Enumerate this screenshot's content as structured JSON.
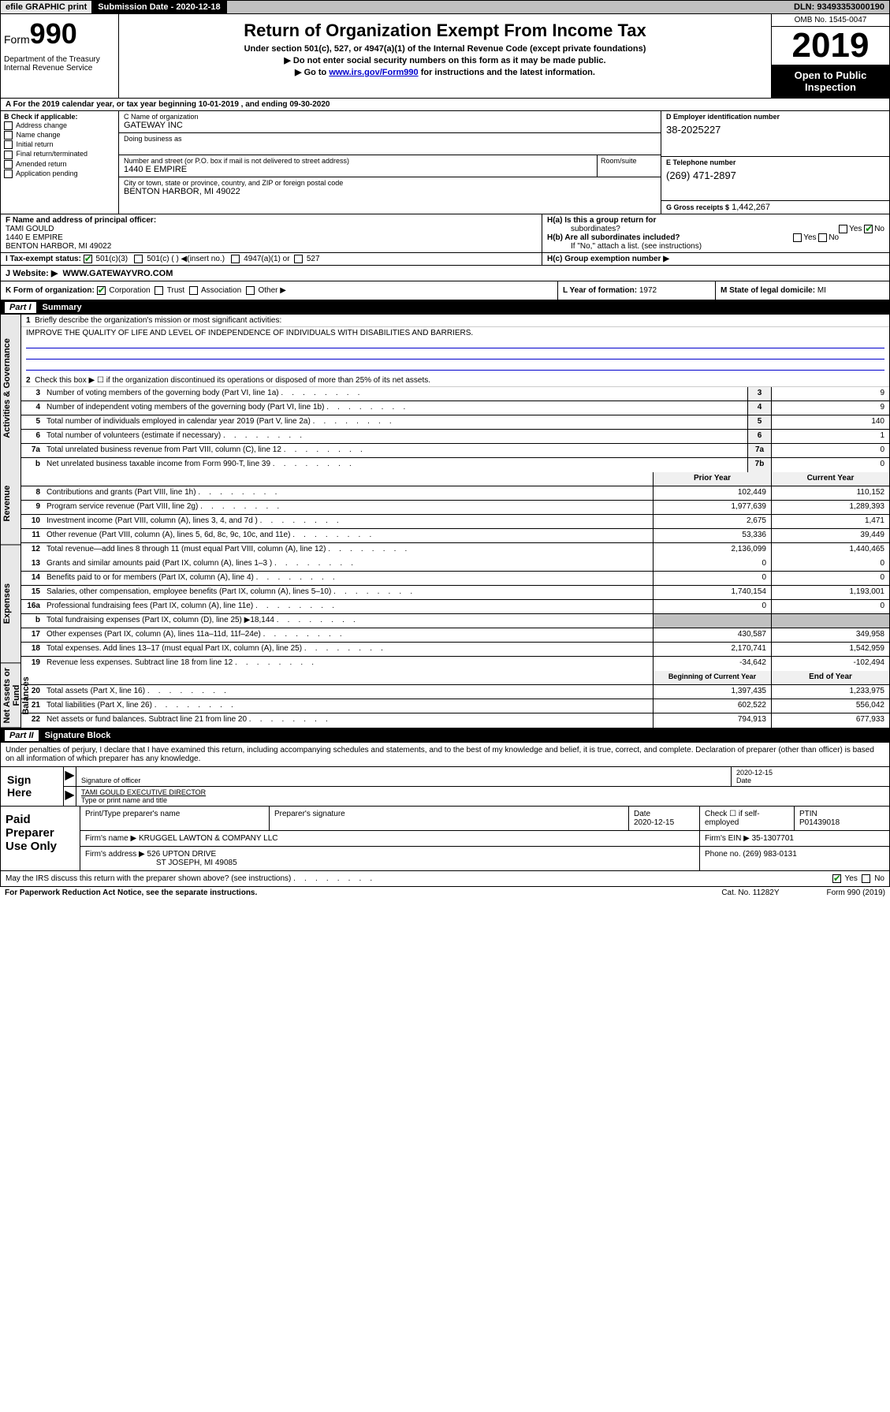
{
  "top": {
    "efile": "efile GRAPHIC print",
    "sub_label": "Submission Date - 2020-12-18",
    "dln": "DLN: 93493353000190"
  },
  "header": {
    "form": "Form",
    "form_num": "990",
    "dept": "Department of the Treasury\nInternal Revenue Service",
    "title": "Return of Organization Exempt From Income Tax",
    "sub1": "Under section 501(c), 527, or 4947(a)(1) of the Internal Revenue Code (except private foundations)",
    "sub2": "▶ Do not enter social security numbers on this form as it may be made public.",
    "sub3_pre": "▶ Go to ",
    "sub3_link": "www.irs.gov/Form990",
    "sub3_post": " for instructions and the latest information.",
    "omb": "OMB No. 1545-0047",
    "year": "2019",
    "open": "Open to Public Inspection"
  },
  "taxyear": "A For the 2019 calendar year, or tax year beginning 10-01-2019   , and ending 09-30-2020",
  "colB": {
    "label": "B Check if applicable:",
    "opts": [
      "Address change",
      "Name change",
      "Initial return",
      "Final return/terminated",
      "Amended return",
      "Application pending"
    ]
  },
  "colC": {
    "name_lbl": "C Name of organization",
    "name": "GATEWAY INC",
    "dba_lbl": "Doing business as",
    "addr_lbl": "Number and street (or P.O. box if mail is not delivered to street address)",
    "addr": "1440 E EMPIRE",
    "room_lbl": "Room/suite",
    "city_lbl": "City or town, state or province, country, and ZIP or foreign postal code",
    "city": "BENTON HARBOR, MI  49022"
  },
  "colD": {
    "ein_lbl": "D Employer identification number",
    "ein": "38-2025227",
    "tel_lbl": "E Telephone number",
    "tel": "(269) 471-2897",
    "gross_lbl": "G Gross receipts $",
    "gross": "1,442,267"
  },
  "F": {
    "lbl": "F Name and address of principal officer:",
    "name": "TAMI GOULD",
    "addr1": "1440 E EMPIRE",
    "addr2": "BENTON HARBOR, MI  49022"
  },
  "H": {
    "a": "H(a)  Is this a group return for",
    "a2": "subordinates?",
    "b": "H(b)  Are all subordinates included?",
    "note": "If \"No,\" attach a list. (see instructions)",
    "c": "H(c)  Group exemption number ▶"
  },
  "I": {
    "lbl": "I  Tax-exempt status:",
    "o1": "501(c)(3)",
    "o2": "501(c) (   ) ◀(insert no.)",
    "o3": "4947(a)(1) or",
    "o4": "527"
  },
  "J": {
    "lbl": "J  Website: ▶",
    "val": "WWW.GATEWAYVRO.COM"
  },
  "K": {
    "lbl": "K Form of organization:",
    "corp": "Corporation",
    "trust": "Trust",
    "assoc": "Association",
    "other": "Other ▶"
  },
  "L": {
    "lbl": "L Year of formation:",
    "val": "1972"
  },
  "M": {
    "lbl": "M State of legal domicile:",
    "val": "MI"
  },
  "partI": {
    "title": "Summary",
    "l1": "Briefly describe the organization's mission or most significant activities:",
    "mission": "IMPROVE THE QUALITY OF LIFE AND LEVEL OF INDEPENDENCE OF INDIVIDUALS WITH DISABILITIES AND BARRIERS.",
    "l2": "Check this box ▶ ☐ if the organization discontinued its operations or disposed of more than 25% of its net assets.",
    "lines_small": [
      {
        "n": "3",
        "t": "Number of voting members of the governing body (Part VI, line 1a)",
        "b": "3",
        "v": "9"
      },
      {
        "n": "4",
        "t": "Number of independent voting members of the governing body (Part VI, line 1b)",
        "b": "4",
        "v": "9"
      },
      {
        "n": "5",
        "t": "Total number of individuals employed in calendar year 2019 (Part V, line 2a)",
        "b": "5",
        "v": "140"
      },
      {
        "n": "6",
        "t": "Total number of volunteers (estimate if necessary)",
        "b": "6",
        "v": "1"
      },
      {
        "n": "7a",
        "t": "Total unrelated business revenue from Part VIII, column (C), line 12",
        "b": "7a",
        "v": "0"
      },
      {
        "n": "b",
        "t": "Net unrelated business taxable income from Form 990-T, line 39",
        "b": "7b",
        "v": "0"
      }
    ],
    "col_hdr_prior": "Prior Year",
    "col_hdr_curr": "Current Year",
    "revenue": [
      {
        "n": "8",
        "t": "Contributions and grants (Part VIII, line 1h)",
        "p": "102,449",
        "c": "110,152"
      },
      {
        "n": "9",
        "t": "Program service revenue (Part VIII, line 2g)",
        "p": "1,977,639",
        "c": "1,289,393"
      },
      {
        "n": "10",
        "t": "Investment income (Part VIII, column (A), lines 3, 4, and 7d )",
        "p": "2,675",
        "c": "1,471"
      },
      {
        "n": "11",
        "t": "Other revenue (Part VIII, column (A), lines 5, 6d, 8c, 9c, 10c, and 11e)",
        "p": "53,336",
        "c": "39,449"
      },
      {
        "n": "12",
        "t": "Total revenue—add lines 8 through 11 (must equal Part VIII, column (A), line 12)",
        "p": "2,136,099",
        "c": "1,440,465"
      }
    ],
    "expenses": [
      {
        "n": "13",
        "t": "Grants and similar amounts paid (Part IX, column (A), lines 1–3 )",
        "p": "0",
        "c": "0"
      },
      {
        "n": "14",
        "t": "Benefits paid to or for members (Part IX, column (A), line 4)",
        "p": "0",
        "c": "0"
      },
      {
        "n": "15",
        "t": "Salaries, other compensation, employee benefits (Part IX, column (A), lines 5–10)",
        "p": "1,740,154",
        "c": "1,193,001"
      },
      {
        "n": "16a",
        "t": "Professional fundraising fees (Part IX, column (A), line 11e)",
        "p": "0",
        "c": "0"
      },
      {
        "n": "b",
        "t": "Total fundraising expenses (Part IX, column (D), line 25) ▶18,144",
        "p": "",
        "c": "",
        "shaded": true
      },
      {
        "n": "17",
        "t": "Other expenses (Part IX, column (A), lines 11a–11d, 11f–24e)",
        "p": "430,587",
        "c": "349,958"
      },
      {
        "n": "18",
        "t": "Total expenses. Add lines 13–17 (must equal Part IX, column (A), line 25)",
        "p": "2,170,741",
        "c": "1,542,959"
      },
      {
        "n": "19",
        "t": "Revenue less expenses. Subtract line 18 from line 12",
        "p": "-34,642",
        "c": "-102,494"
      }
    ],
    "col_hdr_beg": "Beginning of Current Year",
    "col_hdr_end": "End of Year",
    "netassets": [
      {
        "n": "20",
        "t": "Total assets (Part X, line 16)",
        "p": "1,397,435",
        "c": "1,233,975"
      },
      {
        "n": "21",
        "t": "Total liabilities (Part X, line 26)",
        "p": "602,522",
        "c": "556,042"
      },
      {
        "n": "22",
        "t": "Net assets or fund balances. Subtract line 21 from line 20",
        "p": "794,913",
        "c": "677,933"
      }
    ]
  },
  "vtabs": {
    "gov": "Activities & Governance",
    "rev": "Revenue",
    "exp": "Expenses",
    "net": "Net Assets or Fund Balances"
  },
  "partII": {
    "title": "Signature Block",
    "perjury": "Under penalties of perjury, I declare that I have examined this return, including accompanying schedules and statements, and to the best of my knowledge and belief, it is true, correct, and complete. Declaration of preparer (other than officer) is based on all information of which preparer has any knowledge.",
    "sign_here": "Sign Here",
    "sig_officer": "Signature of officer",
    "sig_date": "2020-12-15",
    "date_lbl": "Date",
    "officer_name": "TAMI GOULD  EXECUTIVE DIRECTOR",
    "type_name": "Type or print name and title",
    "paid": "Paid Preparer Use Only",
    "prep_name_lbl": "Print/Type preparer's name",
    "prep_sig_lbl": "Preparer's signature",
    "prep_date": "2020-12-15",
    "check_self": "Check ☐ if self-employed",
    "ptin_lbl": "PTIN",
    "ptin": "P01439018",
    "firm_name_lbl": "Firm's name    ▶",
    "firm_name": "KRUGGEL LAWTON & COMPANY LLC",
    "firm_ein_lbl": "Firm's EIN ▶",
    "firm_ein": "35-1307701",
    "firm_addr_lbl": "Firm's address ▶",
    "firm_addr": "526 UPTON DRIVE",
    "firm_city": "ST JOSEPH, MI  49085",
    "phone_lbl": "Phone no.",
    "phone": "(269) 983-0131"
  },
  "discuss": {
    "q": "May the IRS discuss this return with the preparer shown above? (see instructions)",
    "yes": "Yes",
    "no": "No"
  },
  "footer": {
    "pra": "For Paperwork Reduction Act Notice, see the separate instructions.",
    "cat": "Cat. No. 11282Y",
    "form": "Form 990 (2019)"
  }
}
